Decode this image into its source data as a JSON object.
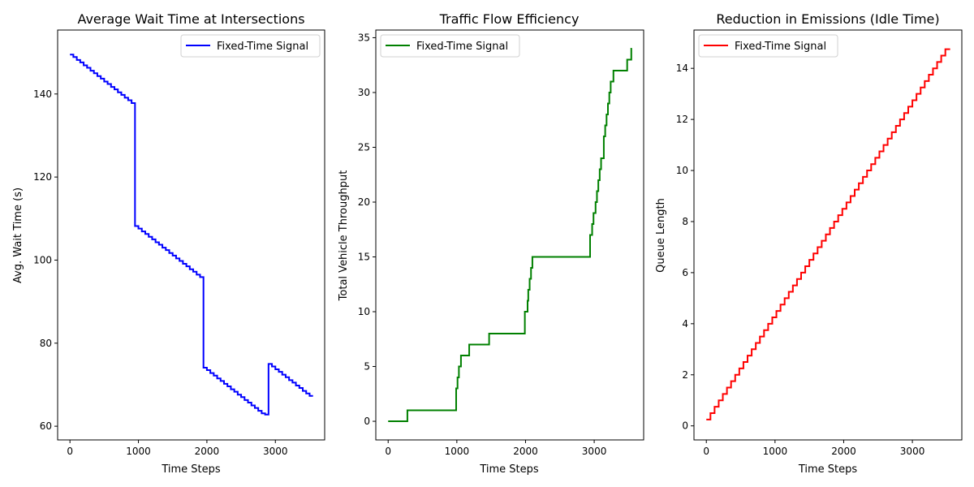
{
  "chart_data": [
    {
      "type": "line",
      "title": "Average Wait Time at Intersections",
      "xlabel": "Time Steps",
      "ylabel": "Avg. Wait Time (s)",
      "xlim": [
        -180,
        3720
      ],
      "ylim": [
        56.7,
        155.4
      ],
      "xticks": [
        0,
        1000,
        2000,
        3000
      ],
      "yticks": [
        60,
        80,
        100,
        120,
        140
      ],
      "legend_position": "upper right",
      "grid": false,
      "series": [
        {
          "name": "Fixed-Time Signal",
          "color": "#0000ff",
          "step": true,
          "x": [
            0,
            50,
            100,
            150,
            200,
            250,
            300,
            350,
            400,
            450,
            500,
            550,
            600,
            650,
            700,
            750,
            800,
            850,
            900,
            950,
            1000,
            1050,
            1100,
            1150,
            1200,
            1250,
            1300,
            1350,
            1400,
            1450,
            1500,
            1550,
            1600,
            1650,
            1700,
            1750,
            1800,
            1850,
            1900,
            1950,
            2000,
            2050,
            2100,
            2150,
            2200,
            2250,
            2300,
            2350,
            2400,
            2450,
            2500,
            2550,
            2600,
            2650,
            2700,
            2750,
            2800,
            2850,
            2900,
            2950,
            3000,
            3050,
            3100,
            3150,
            3200,
            3250,
            3300,
            3350,
            3400,
            3450,
            3500,
            3550
          ],
          "y": [
            149.5,
            148.9,
            148.2,
            147.6,
            146.9,
            146.3,
            145.6,
            145.0,
            144.3,
            143.7,
            143.0,
            142.4,
            141.7,
            141.1,
            140.4,
            139.8,
            139.1,
            138.5,
            137.8,
            108.2,
            107.6,
            106.9,
            106.3,
            105.6,
            105.0,
            104.3,
            103.7,
            103.0,
            102.4,
            101.7,
            101.1,
            100.4,
            99.8,
            99.1,
            98.5,
            97.8,
            97.2,
            96.5,
            95.9,
            74.1,
            73.5,
            72.8,
            72.2,
            71.5,
            70.9,
            70.2,
            69.6,
            68.9,
            68.3,
            67.6,
            67.0,
            66.3,
            65.7,
            65.0,
            64.4,
            63.7,
            63.1,
            62.8,
            75.0,
            74.4,
            73.7,
            73.1,
            72.4,
            71.8,
            71.1,
            70.5,
            69.8,
            69.2,
            68.5,
            67.9,
            67.3,
            67.3
          ]
        }
      ]
    },
    {
      "type": "line",
      "title": "Traffic Flow Efficiency",
      "xlabel": "Time Steps",
      "ylabel": "Total Vehicle Throughput",
      "xlim": [
        -180,
        3720
      ],
      "ylim": [
        -1.7,
        35.7
      ],
      "xticks": [
        0,
        1000,
        2000,
        3000
      ],
      "yticks": [
        0,
        5,
        10,
        15,
        20,
        25,
        30,
        35
      ],
      "legend_position": "upper left",
      "grid": false,
      "series": [
        {
          "name": "Fixed-Time Signal",
          "color": "#008000",
          "step": true,
          "x": [
            0,
            280,
            990,
            1010,
            1030,
            1060,
            1180,
            1470,
            1990,
            2030,
            2040,
            2060,
            2080,
            2100,
            2940,
            2970,
            2990,
            3020,
            3040,
            3060,
            3080,
            3100,
            3140,
            3160,
            3180,
            3200,
            3220,
            3240,
            3280,
            3480,
            3540,
            3550
          ],
          "y": [
            0,
            1,
            3,
            4,
            5,
            6,
            7,
            8,
            10,
            11,
            12,
            13,
            14,
            15,
            17,
            18,
            19,
            20,
            21,
            22,
            23,
            24,
            26,
            27,
            28,
            29,
            30,
            31,
            32,
            33,
            34,
            34
          ]
        }
      ]
    },
    {
      "type": "line",
      "title": "Reduction in Emissions (Idle Time)",
      "xlabel": "Time Steps",
      "ylabel": "Queue Length",
      "xlim": [
        -180,
        3720
      ],
      "ylim": [
        -0.55,
        15.5
      ],
      "xticks": [
        0,
        1000,
        2000,
        3000
      ],
      "yticks": [
        0,
        2,
        4,
        6,
        8,
        10,
        12,
        14
      ],
      "legend_position": "upper left",
      "grid": false,
      "series": [
        {
          "name": "Fixed-Time Signal",
          "color": "#ff0000",
          "step": true,
          "x": [
            0,
            60,
            120,
            180,
            240,
            300,
            360,
            420,
            480,
            540,
            600,
            660,
            720,
            780,
            840,
            900,
            960,
            1020,
            1080,
            1140,
            1200,
            1260,
            1320,
            1380,
            1440,
            1500,
            1560,
            1620,
            1680,
            1740,
            1800,
            1860,
            1920,
            1980,
            2040,
            2100,
            2160,
            2220,
            2280,
            2340,
            2400,
            2460,
            2520,
            2580,
            2640,
            2700,
            2760,
            2820,
            2880,
            2940,
            3000,
            3060,
            3120,
            3180,
            3240,
            3300,
            3360,
            3420,
            3480,
            3550
          ],
          "y": [
            0.25,
            0.5,
            0.75,
            1.0,
            1.25,
            1.5,
            1.75,
            2.0,
            2.25,
            2.5,
            2.75,
            3.0,
            3.25,
            3.5,
            3.75,
            4.0,
            4.25,
            4.5,
            4.75,
            5.0,
            5.25,
            5.5,
            5.75,
            6.0,
            6.25,
            6.5,
            6.75,
            7.0,
            7.25,
            7.5,
            7.75,
            8.0,
            8.25,
            8.5,
            8.75,
            9.0,
            9.25,
            9.5,
            9.75,
            10.0,
            10.25,
            10.5,
            10.75,
            11.0,
            11.25,
            11.5,
            11.75,
            12.0,
            12.25,
            12.5,
            12.75,
            13.0,
            13.25,
            13.5,
            13.75,
            14.0,
            14.25,
            14.5,
            14.75,
            14.75
          ]
        }
      ]
    }
  ]
}
